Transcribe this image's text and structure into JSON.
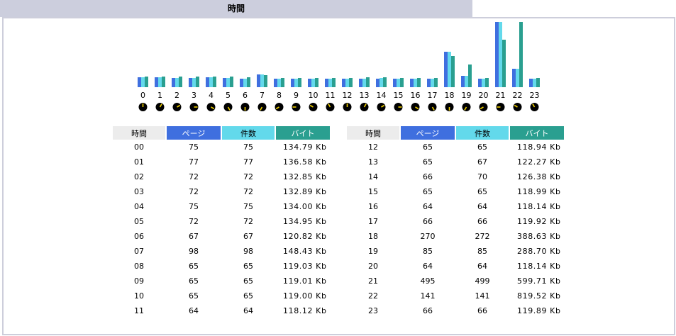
{
  "section": {
    "title": "時間"
  },
  "headers": {
    "hour": "時間",
    "pages": "ページ",
    "hits": "件数",
    "bytes": "バイト"
  },
  "colors": {
    "title_bg": "#cccedd",
    "pages": "#3f6fdf",
    "hits": "#63d9eb",
    "bytes": "#2a9f90",
    "clock_face": "#000000",
    "clock_hand": "#f0d000"
  },
  "chart_data": {
    "type": "bar",
    "categories": [
      "0",
      "1",
      "2",
      "3",
      "4",
      "5",
      "6",
      "7",
      "8",
      "9",
      "10",
      "11",
      "12",
      "13",
      "14",
      "15",
      "16",
      "17",
      "18",
      "19",
      "20",
      "21",
      "22",
      "23"
    ],
    "series": [
      {
        "name": "ページ",
        "values": [
          75,
          77,
          72,
          72,
          75,
          72,
          67,
          98,
          65,
          65,
          65,
          64,
          65,
          65,
          66,
          65,
          64,
          66,
          270,
          85,
          64,
          495,
          141,
          66
        ]
      },
      {
        "name": "件数",
        "values": [
          75,
          77,
          72,
          72,
          75,
          72,
          67,
          98,
          65,
          65,
          65,
          64,
          65,
          67,
          70,
          65,
          64,
          66,
          272,
          85,
          64,
          499,
          141,
          66
        ]
      },
      {
        "name": "バイト",
        "values": [
          134.79,
          136.58,
          132.85,
          132.89,
          134.0,
          134.95,
          120.82,
          148.43,
          119.03,
          119.01,
          119.0,
          118.12,
          118.94,
          122.27,
          126.38,
          118.99,
          118.14,
          119.92,
          388.63,
          288.7,
          118.14,
          599.71,
          819.52,
          119.89
        ]
      }
    ]
  },
  "table_left": {
    "rows": [
      {
        "hour": "00",
        "pages": "75",
        "hits": "75",
        "bytes": "134.79 Kb"
      },
      {
        "hour": "01",
        "pages": "77",
        "hits": "77",
        "bytes": "136.58 Kb"
      },
      {
        "hour": "02",
        "pages": "72",
        "hits": "72",
        "bytes": "132.85 Kb"
      },
      {
        "hour": "03",
        "pages": "72",
        "hits": "72",
        "bytes": "132.89 Kb"
      },
      {
        "hour": "04",
        "pages": "75",
        "hits": "75",
        "bytes": "134.00 Kb"
      },
      {
        "hour": "05",
        "pages": "72",
        "hits": "72",
        "bytes": "134.95 Kb"
      },
      {
        "hour": "06",
        "pages": "67",
        "hits": "67",
        "bytes": "120.82 Kb"
      },
      {
        "hour": "07",
        "pages": "98",
        "hits": "98",
        "bytes": "148.43 Kb"
      },
      {
        "hour": "08",
        "pages": "65",
        "hits": "65",
        "bytes": "119.03 Kb"
      },
      {
        "hour": "09",
        "pages": "65",
        "hits": "65",
        "bytes": "119.01 Kb"
      },
      {
        "hour": "10",
        "pages": "65",
        "hits": "65",
        "bytes": "119.00 Kb"
      },
      {
        "hour": "11",
        "pages": "64",
        "hits": "64",
        "bytes": "118.12 Kb"
      }
    ]
  },
  "table_right": {
    "rows": [
      {
        "hour": "12",
        "pages": "65",
        "hits": "65",
        "bytes": "118.94 Kb"
      },
      {
        "hour": "13",
        "pages": "65",
        "hits": "67",
        "bytes": "122.27 Kb"
      },
      {
        "hour": "14",
        "pages": "66",
        "hits": "70",
        "bytes": "126.38 Kb"
      },
      {
        "hour": "15",
        "pages": "65",
        "hits": "65",
        "bytes": "118.99 Kb"
      },
      {
        "hour": "16",
        "pages": "64",
        "hits": "64",
        "bytes": "118.14 Kb"
      },
      {
        "hour": "17",
        "pages": "66",
        "hits": "66",
        "bytes": "119.92 Kb"
      },
      {
        "hour": "18",
        "pages": "270",
        "hits": "272",
        "bytes": "388.63 Kb"
      },
      {
        "hour": "19",
        "pages": "85",
        "hits": "85",
        "bytes": "288.70 Kb"
      },
      {
        "hour": "20",
        "pages": "64",
        "hits": "64",
        "bytes": "118.14 Kb"
      },
      {
        "hour": "21",
        "pages": "495",
        "hits": "499",
        "bytes": "599.71 Kb"
      },
      {
        "hour": "22",
        "pages": "141",
        "hits": "141",
        "bytes": "819.52 Kb"
      },
      {
        "hour": "23",
        "pages": "66",
        "hits": "66",
        "bytes": "119.89 Kb"
      }
    ]
  }
}
